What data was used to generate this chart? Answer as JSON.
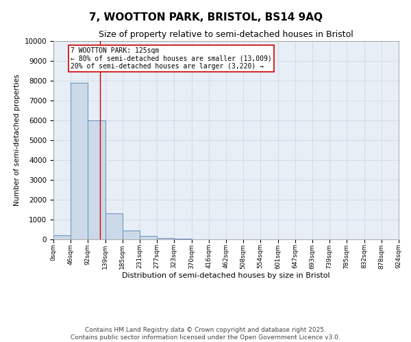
{
  "title": "7, WOOTTON PARK, BRISTOL, BS14 9AQ",
  "subtitle": "Size of property relative to semi-detached houses in Bristol",
  "xlabel": "Distribution of semi-detached houses by size in Bristol",
  "ylabel": "Number of semi-detached properties",
  "bar_color": "#ccd9e8",
  "bar_edge_color": "#6090bb",
  "bar_values": [
    200,
    7900,
    6000,
    1300,
    450,
    170,
    80,
    50,
    10,
    5,
    2,
    1,
    0,
    0,
    0,
    0,
    0,
    0,
    0,
    0
  ],
  "bin_edges": [
    0,
    46,
    92,
    139,
    185,
    231,
    277,
    323,
    370,
    416,
    462,
    508,
    554,
    601,
    647,
    693,
    739,
    785,
    832,
    878,
    924
  ],
  "tick_labels": [
    "0sqm",
    "46sqm",
    "92sqm",
    "139sqm",
    "185sqm",
    "231sqm",
    "277sqm",
    "323sqm",
    "370sqm",
    "416sqm",
    "462sqm",
    "508sqm",
    "554sqm",
    "601sqm",
    "647sqm",
    "693sqm",
    "739sqm",
    "785sqm",
    "832sqm",
    "878sqm",
    "924sqm"
  ],
  "property_size": 125,
  "property_line_color": "#cc0000",
  "annotation_line1": "7 WOOTTON PARK: 125sqm",
  "annotation_line2": "← 80% of semi-detached houses are smaller (13,009)",
  "annotation_line3": "20% of semi-detached houses are larger (3,220) →",
  "annotation_box_color": "#ffffff",
  "annotation_border_color": "#cc0000",
  "ylim": [
    0,
    10000
  ],
  "yticks": [
    0,
    1000,
    2000,
    3000,
    4000,
    5000,
    6000,
    7000,
    8000,
    9000,
    10000
  ],
  "grid_color": "#d0d8e4",
  "background_color": "#e8eef5",
  "footer_line1": "Contains HM Land Registry data © Crown copyright and database right 2025.",
  "footer_line2": "Contains public sector information licensed under the Open Government Licence v3.0.",
  "title_fontsize": 11,
  "subtitle_fontsize": 9,
  "footer_fontsize": 6.5
}
